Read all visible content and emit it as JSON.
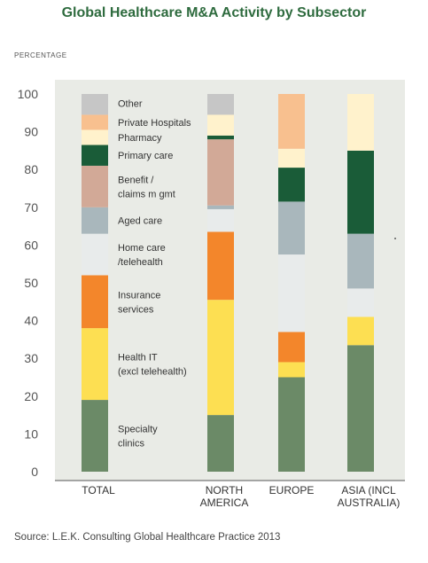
{
  "title": "Global Healthcare M&A Activity by Subsector",
  "ylabel": "PERCENTAGE",
  "source": "Source: L.E.K. Consulting Global Healthcare Practice 2013",
  "chart_data": {
    "type": "bar",
    "stacked": true,
    "ylim": [
      0,
      100
    ],
    "yticks": [
      0,
      10,
      20,
      30,
      40,
      50,
      60,
      70,
      80,
      90,
      100
    ],
    "categories": [
      [
        "TOTAL"
      ],
      [
        "NORTH",
        "AMERICA"
      ],
      [
        "EUROPE"
      ],
      [
        "ASIA (INCL",
        "AUSTRALIA)"
      ]
    ],
    "series": [
      {
        "name": [
          "Specialty",
          "clinics"
        ],
        "color": "#6b8a67",
        "values": [
          19,
          15,
          25,
          33.5
        ]
      },
      {
        "name": [
          "Health IT",
          "(excl telehealth)"
        ],
        "color": "#fddf52",
        "values": [
          19,
          30.5,
          4,
          7.5
        ]
      },
      {
        "name": [
          "Insurance",
          "services"
        ],
        "color": "#f3862b",
        "values": [
          14,
          18,
          8,
          0
        ]
      },
      {
        "name": [
          "Home care",
          "/telehealth"
        ],
        "color": "#e8ebeb",
        "values": [
          11,
          6,
          20.5,
          7.5
        ]
      },
      {
        "name": [
          "Aged care"
        ],
        "color": "#a9b7bc",
        "values": [
          7,
          1,
          14,
          14.5
        ]
      },
      {
        "name": [
          "Benefit /",
          "claims m gmt"
        ],
        "color": "#d2a997",
        "values": [
          11,
          17.5,
          0,
          0
        ]
      },
      {
        "name": [
          "Primary care"
        ],
        "color": "#1a5c38",
        "values": [
          5.5,
          1,
          9,
          22
        ]
      },
      {
        "name": [
          "Pharmacy"
        ],
        "color": "#fff2cc",
        "values": [
          4,
          5.5,
          5,
          15
        ]
      },
      {
        "name": [
          "Private Hospitals"
        ],
        "color": "#f8c08f",
        "values": [
          4,
          0,
          14.5,
          0
        ]
      },
      {
        "name": [
          "Other"
        ],
        "color": "#c6c6c6",
        "values": [
          5.5,
          5.5,
          0,
          0
        ]
      }
    ]
  }
}
